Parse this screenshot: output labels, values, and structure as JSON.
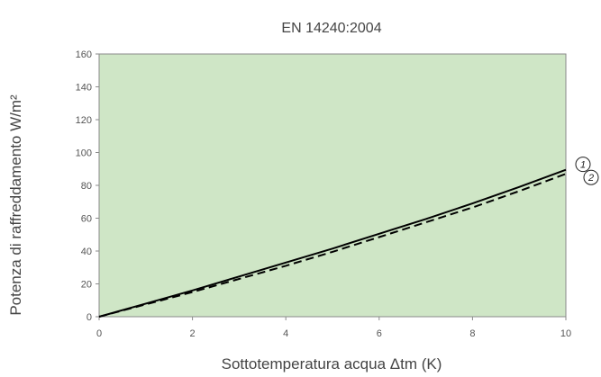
{
  "chart_data": {
    "type": "line",
    "title": "EN 14240:2004",
    "xlabel": "Sottotemperatura acqua Δtm (K)",
    "ylabel": "Potenza di raffreddamento W/m²",
    "xlim": [
      0,
      10
    ],
    "ylim": [
      0,
      160
    ],
    "x_ticks": [
      0,
      2,
      4,
      6,
      8,
      10
    ],
    "y_ticks": [
      0,
      20,
      40,
      60,
      80,
      100,
      120,
      140,
      160
    ],
    "plot_background": "#cfe6c6",
    "grid": false,
    "series": [
      {
        "label": "1",
        "line_style": "solid",
        "color": "#000000",
        "x": [
          0,
          1,
          2,
          3,
          4,
          5,
          6,
          7,
          8,
          9,
          10
        ],
        "y": [
          0,
          8,
          16,
          24.5,
          33,
          41.5,
          50.5,
          59.5,
          69,
          79,
          89.5
        ]
      },
      {
        "label": "2",
        "line_style": "dashed",
        "color": "#000000",
        "x": [
          0,
          1,
          2,
          3,
          4,
          5,
          6,
          7,
          8,
          9,
          10
        ],
        "y": [
          0,
          7.5,
          15,
          23,
          31,
          39.5,
          48.5,
          57.5,
          66.5,
          76.5,
          87
        ]
      }
    ]
  }
}
